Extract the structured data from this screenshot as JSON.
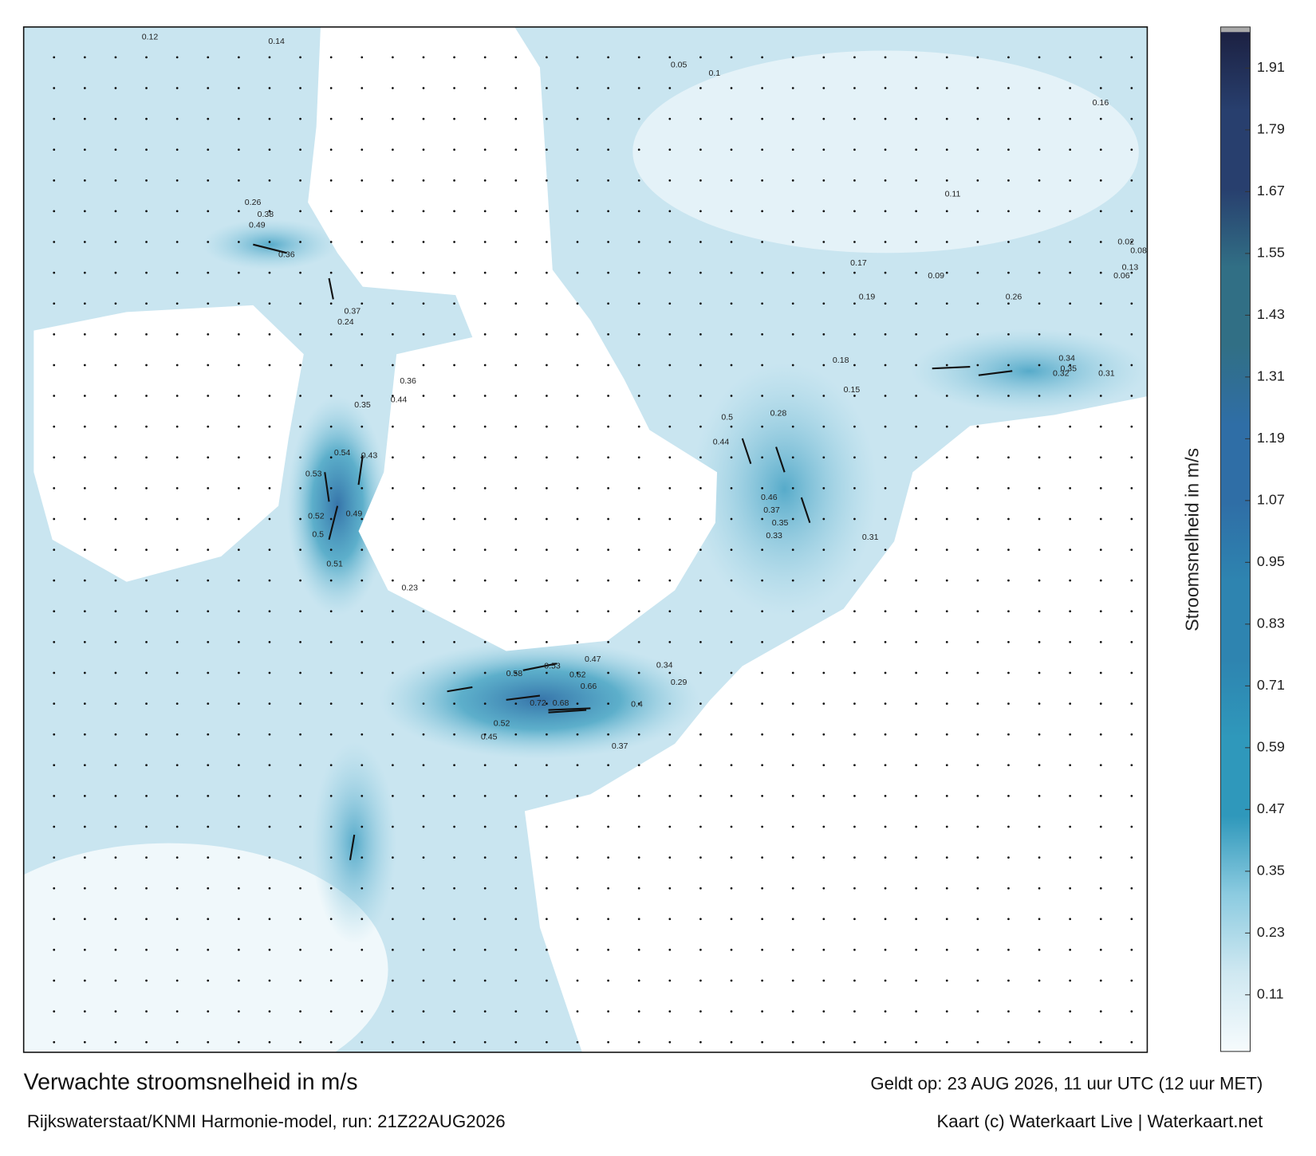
{
  "header": {
    "title": "Verwachte stroomsnelheid in m/s",
    "valid": "Geldt op: 23 AUG 2026, 11 uur UTC (12 uur MET)",
    "model": "Rijkswaterstaat/KNMI Harmonie-model, run: 21Z22AUG2026",
    "credit": "Kaart (c) Waterkaart Live | Waterkaart.net"
  },
  "colorbar": {
    "label": "Stroomsnelheid in m/s",
    "lim": [
      0,
      1.98
    ],
    "ticks": [
      0.11,
      0.23,
      0.35,
      0.47,
      0.59,
      0.71,
      0.83,
      0.95,
      1.07,
      1.19,
      1.31,
      1.43,
      1.55,
      1.67,
      1.79,
      1.91
    ],
    "colors": [
      "#f6fbfd",
      "#cfe8f1",
      "#8ccbe0",
      "#2f98bb",
      "#2f98bb",
      "#2e84b0",
      "#2e84b0",
      "#2f6ea6",
      "#2f6ea6",
      "#316f85",
      "#316f85",
      "#283f6e",
      "#283f6e",
      "#1c2142"
    ]
  },
  "map": {
    "labels": [
      "0.12",
      "0.14",
      "0.49",
      "0.38",
      "0.26",
      "0.36",
      "0.37",
      "0.24",
      "0.35",
      "0.44",
      "0.36",
      "0.54",
      "0.43",
      "0.53",
      "0.52",
      "0.49",
      "0.5",
      "0.51",
      "0.23",
      "0.58",
      "0.53",
      "0.62",
      "0.66",
      "0.72",
      "0.68",
      "0.4",
      "0.52",
      "0.45",
      "0.37",
      "0.29",
      "0.34",
      "0.47",
      "0.44",
      "0.5",
      "0.46",
      "0.37",
      "0.35",
      "0.33",
      "0.31",
      "0.28",
      "0.34",
      "0.35",
      "0.32",
      "0.31",
      "0.26",
      "0.16",
      "0.17",
      "0.18",
      "0.19",
      "0.15",
      "0.11",
      "0.1",
      "0.05",
      "0.02",
      "0.08",
      "0.13",
      "0.06",
      "0.09"
    ]
  }
}
